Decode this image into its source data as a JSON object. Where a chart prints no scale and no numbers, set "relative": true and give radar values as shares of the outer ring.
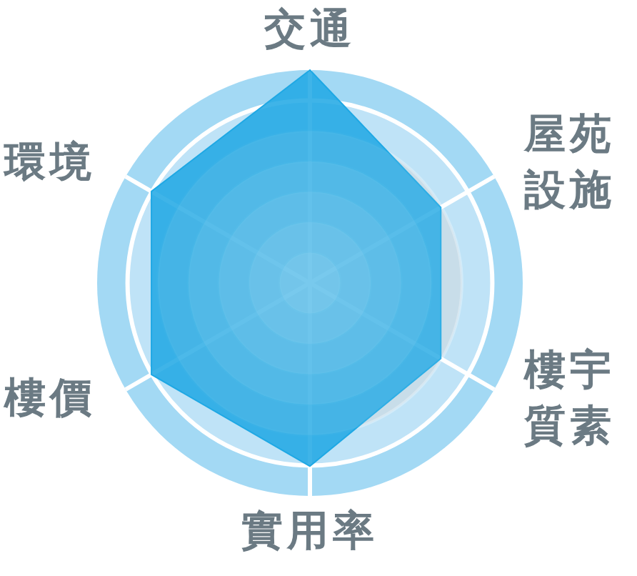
{
  "chart_data": {
    "type": "radar",
    "categories": [
      "交通",
      "屋苑設施",
      "樓宇質素",
      "實用率",
      "樓價",
      "環境"
    ],
    "relative": true,
    "grid": true,
    "marker": "none",
    "series": [
      {
        "color": "#1fa8e4",
        "values": [
          1,
          0.71,
          0.71,
          0.86,
          0.86,
          0.86
        ]
      }
    ]
  }
}
